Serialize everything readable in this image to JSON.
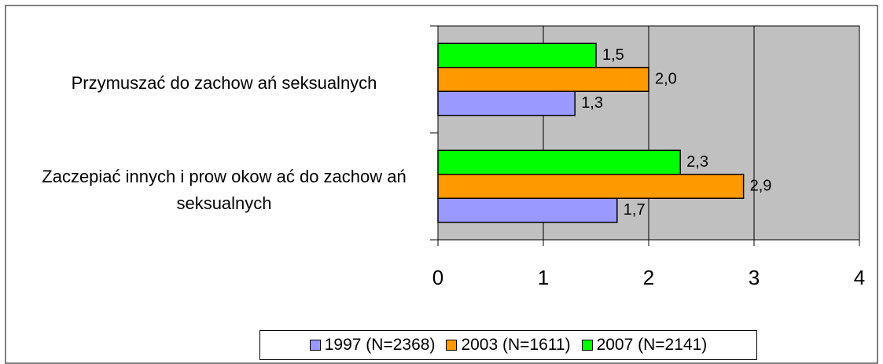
{
  "chart_data": {
    "type": "bar",
    "orientation": "horizontal",
    "categories": [
      "Przymuszać do zachow ań seksualnych",
      "Zaczepiać innych i prow okow ać do zachow ań seksualnych"
    ],
    "series": [
      {
        "name": "1997 (N=2368)",
        "color": "#9999ff",
        "values": [
          1.3,
          1.7
        ],
        "value_labels": [
          "1,3",
          "1,7"
        ]
      },
      {
        "name": "2003 (N=1611)",
        "color": "#ff9900",
        "values": [
          2.0,
          2.9
        ],
        "value_labels": [
          "2,0",
          "2,9"
        ]
      },
      {
        "name": "2007 (N=2141)",
        "color": "#00ff00",
        "values": [
          1.5,
          2.3
        ],
        "value_labels": [
          "1,5",
          "2,3"
        ]
      }
    ],
    "xlim": [
      0,
      4
    ],
    "xticks": [
      0,
      1,
      2,
      3,
      4
    ],
    "grid": true,
    "legend": "bottom"
  }
}
